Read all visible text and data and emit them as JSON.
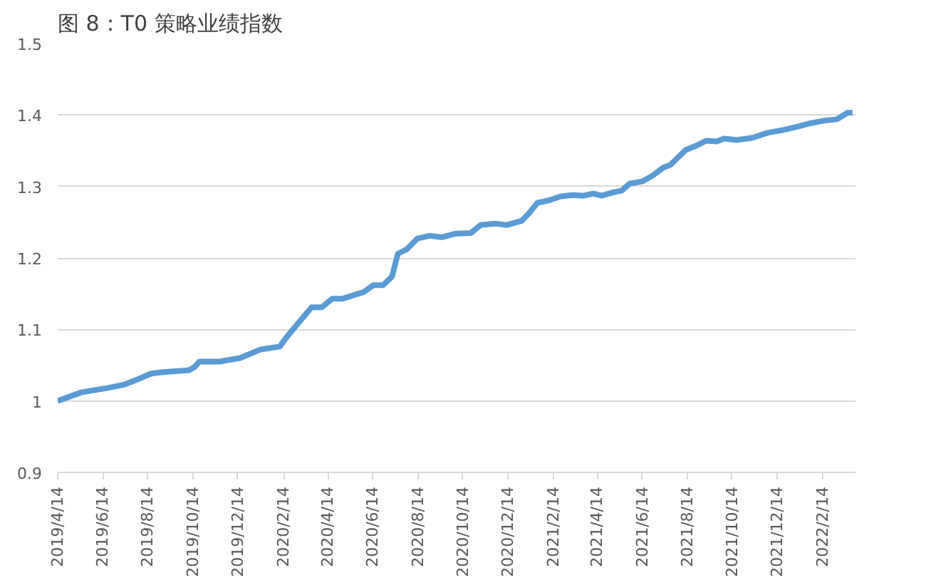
{
  "chart_data": {
    "type": "line",
    "title": "图 8：T0 策略业绩指数",
    "x": [
      "2019-04-14",
      "2019-05-16",
      "2019-06-20",
      "2019-07-14",
      "2019-07-31",
      "2019-08-18",
      "2019-09-01",
      "2019-10-09",
      "2019-10-16",
      "2019-10-23",
      "2019-11-19",
      "2019-12-17",
      "2019-12-31",
      "2020-01-14",
      "2020-02-09",
      "2020-02-18",
      "2020-03-06",
      "2020-03-23",
      "2020-04-06",
      "2020-04-20",
      "2020-05-04",
      "2020-06-01",
      "2020-06-15",
      "2020-06-28",
      "2020-07-10",
      "2020-07-18",
      "2020-07-30",
      "2020-08-13",
      "2020-08-30",
      "2020-09-16",
      "2020-10-04",
      "2020-10-25",
      "2020-11-07",
      "2020-11-28",
      "2020-12-12",
      "2021-01-02",
      "2021-01-12",
      "2021-01-23",
      "2021-02-09",
      "2021-02-23",
      "2021-03-12",
      "2021-03-26",
      "2021-04-09",
      "2021-04-20",
      "2021-05-07",
      "2021-05-17",
      "2021-05-28",
      "2021-06-14",
      "2021-06-28",
      "2021-07-12",
      "2021-07-22",
      "2021-08-12",
      "2021-08-26",
      "2021-09-09",
      "2021-09-23",
      "2021-10-03",
      "2021-10-20",
      "2021-11-10",
      "2021-12-01",
      "2021-12-22",
      "2022-01-12",
      "2022-01-26",
      "2022-02-15",
      "2022-03-05",
      "2022-03-19",
      "2022-03-26"
    ],
    "series": [
      {
        "color": "#5b9bd5",
        "values": [
          1.0,
          1.012,
          1.018,
          1.023,
          1.03,
          1.038,
          1.04,
          1.043,
          1.047,
          1.055,
          1.055,
          1.06,
          1.066,
          1.072,
          1.076,
          1.089,
          1.11,
          1.131,
          1.131,
          1.143,
          1.143,
          1.152,
          1.162,
          1.162,
          1.174,
          1.206,
          1.212,
          1.227,
          1.231,
          1.229,
          1.234,
          1.235,
          1.246,
          1.248,
          1.246,
          1.252,
          1.263,
          1.277,
          1.281,
          1.286,
          1.288,
          1.287,
          1.29,
          1.287,
          1.292,
          1.294,
          1.304,
          1.307,
          1.315,
          1.326,
          1.33,
          1.351,
          1.357,
          1.364,
          1.363,
          1.367,
          1.365,
          1.368,
          1.375,
          1.379,
          1.384,
          1.388,
          1.392,
          1.394,
          1.403,
          1.403
        ]
      }
    ],
    "xlim": [
      "2019-04-14",
      "2022-03-30"
    ],
    "xticks": [
      {
        "value": "2019-04-14",
        "label": "2019/4/14"
      },
      {
        "value": "2019-06-14",
        "label": "2019/6/14"
      },
      {
        "value": "2019-08-14",
        "label": "2019/8/14"
      },
      {
        "value": "2019-10-14",
        "label": "2019/10/14"
      },
      {
        "value": "2019-12-14",
        "label": "2019/12/14"
      },
      {
        "value": "2020-02-14",
        "label": "2020/2/14"
      },
      {
        "value": "2020-04-14",
        "label": "2020/4/14"
      },
      {
        "value": "2020-06-14",
        "label": "2020/6/14"
      },
      {
        "value": "2020-08-14",
        "label": "2020/8/14"
      },
      {
        "value": "2020-10-14",
        "label": "2020/10/14"
      },
      {
        "value": "2020-12-14",
        "label": "2020/12/14"
      },
      {
        "value": "2021-02-14",
        "label": "2021/2/14"
      },
      {
        "value": "2021-04-14",
        "label": "2021/4/14"
      },
      {
        "value": "2021-06-14",
        "label": "2021/6/14"
      },
      {
        "value": "2021-08-14",
        "label": "2021/8/14"
      },
      {
        "value": "2021-10-14",
        "label": "2021/10/14"
      },
      {
        "value": "2021-12-14",
        "label": "2021/12/14"
      },
      {
        "value": "2022-02-14",
        "label": "2022/2/14"
      }
    ],
    "ylim": [
      0.9,
      1.5
    ],
    "yticks": [
      0.9,
      {
        "value": 1.0,
        "label": "1"
      },
      1.1,
      1.2,
      1.3,
      1.4,
      1.5
    ],
    "grid": "y",
    "marker": "none",
    "line_style": "solid"
  }
}
